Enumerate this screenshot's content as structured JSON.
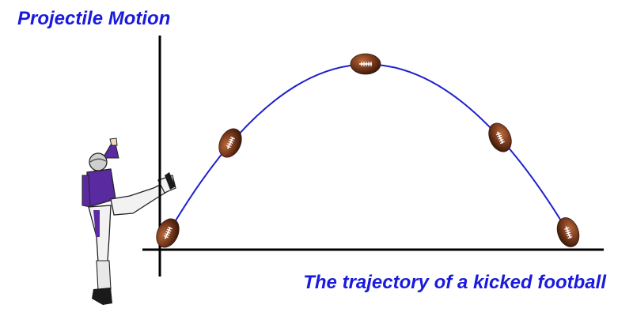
{
  "title": "Projectile Motion",
  "caption": "The trajectory of a kicked football",
  "colors": {
    "title_text": "#1a1adc",
    "trajectory": "#2020d0",
    "axes": "#000000",
    "football": "#7a3b1e",
    "jersey": "#5a2aa0",
    "pants": "#f2f2f2"
  },
  "icons": {
    "kicker": "football-kicker-icon",
    "football": "football-icon"
  }
}
